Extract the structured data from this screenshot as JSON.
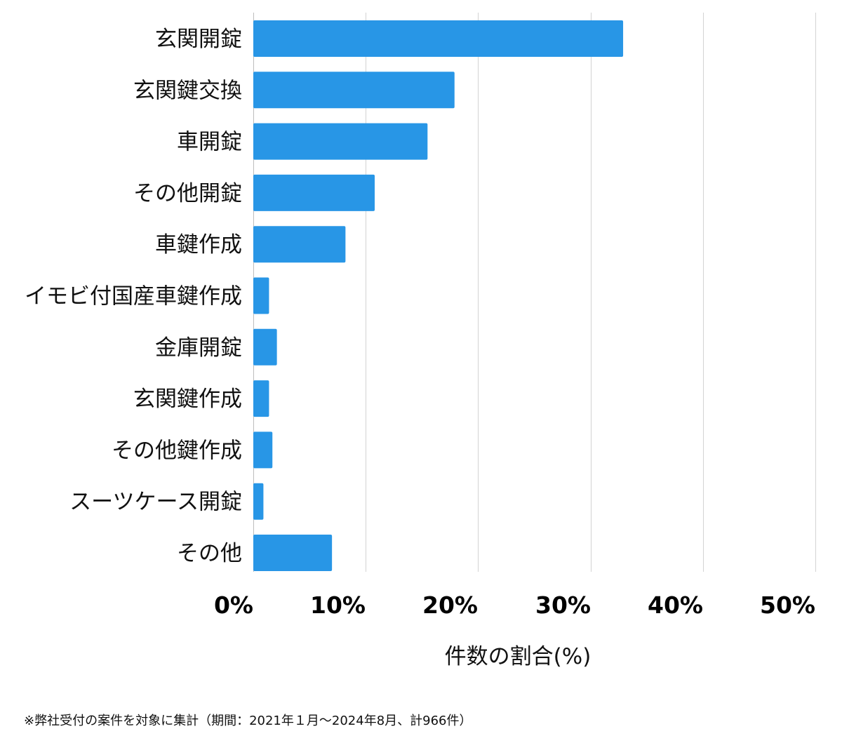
{
  "chart_data": {
    "type": "bar",
    "orientation": "horizontal",
    "categories": [
      "玄関開錠",
      "玄関鍵交換",
      "車開錠",
      "その他開錠",
      "車鍵作成",
      "イモビ付国産車鍵作成",
      "金庫開錠",
      "玄関鍵作成",
      "その他鍵作成",
      "スーツケース開錠",
      "その他"
    ],
    "values": [
      32.9,
      17.9,
      15.5,
      10.8,
      8.2,
      1.4,
      2.1,
      1.4,
      1.7,
      0.9,
      7.0
    ],
    "xlabel": "件数の割合(%)",
    "xlim": [
      0,
      50
    ],
    "xticks": [
      0,
      10,
      20,
      30,
      40,
      50
    ],
    "xtick_labels": [
      "0%",
      "10%",
      "20%",
      "30%",
      "40%",
      "50%"
    ],
    "grid": "vertical",
    "bar_color": "#2896e6"
  },
  "footnote": "※弊社受付の案件を対象に集計（期間：2021年１月〜2024年8月、計966件）"
}
